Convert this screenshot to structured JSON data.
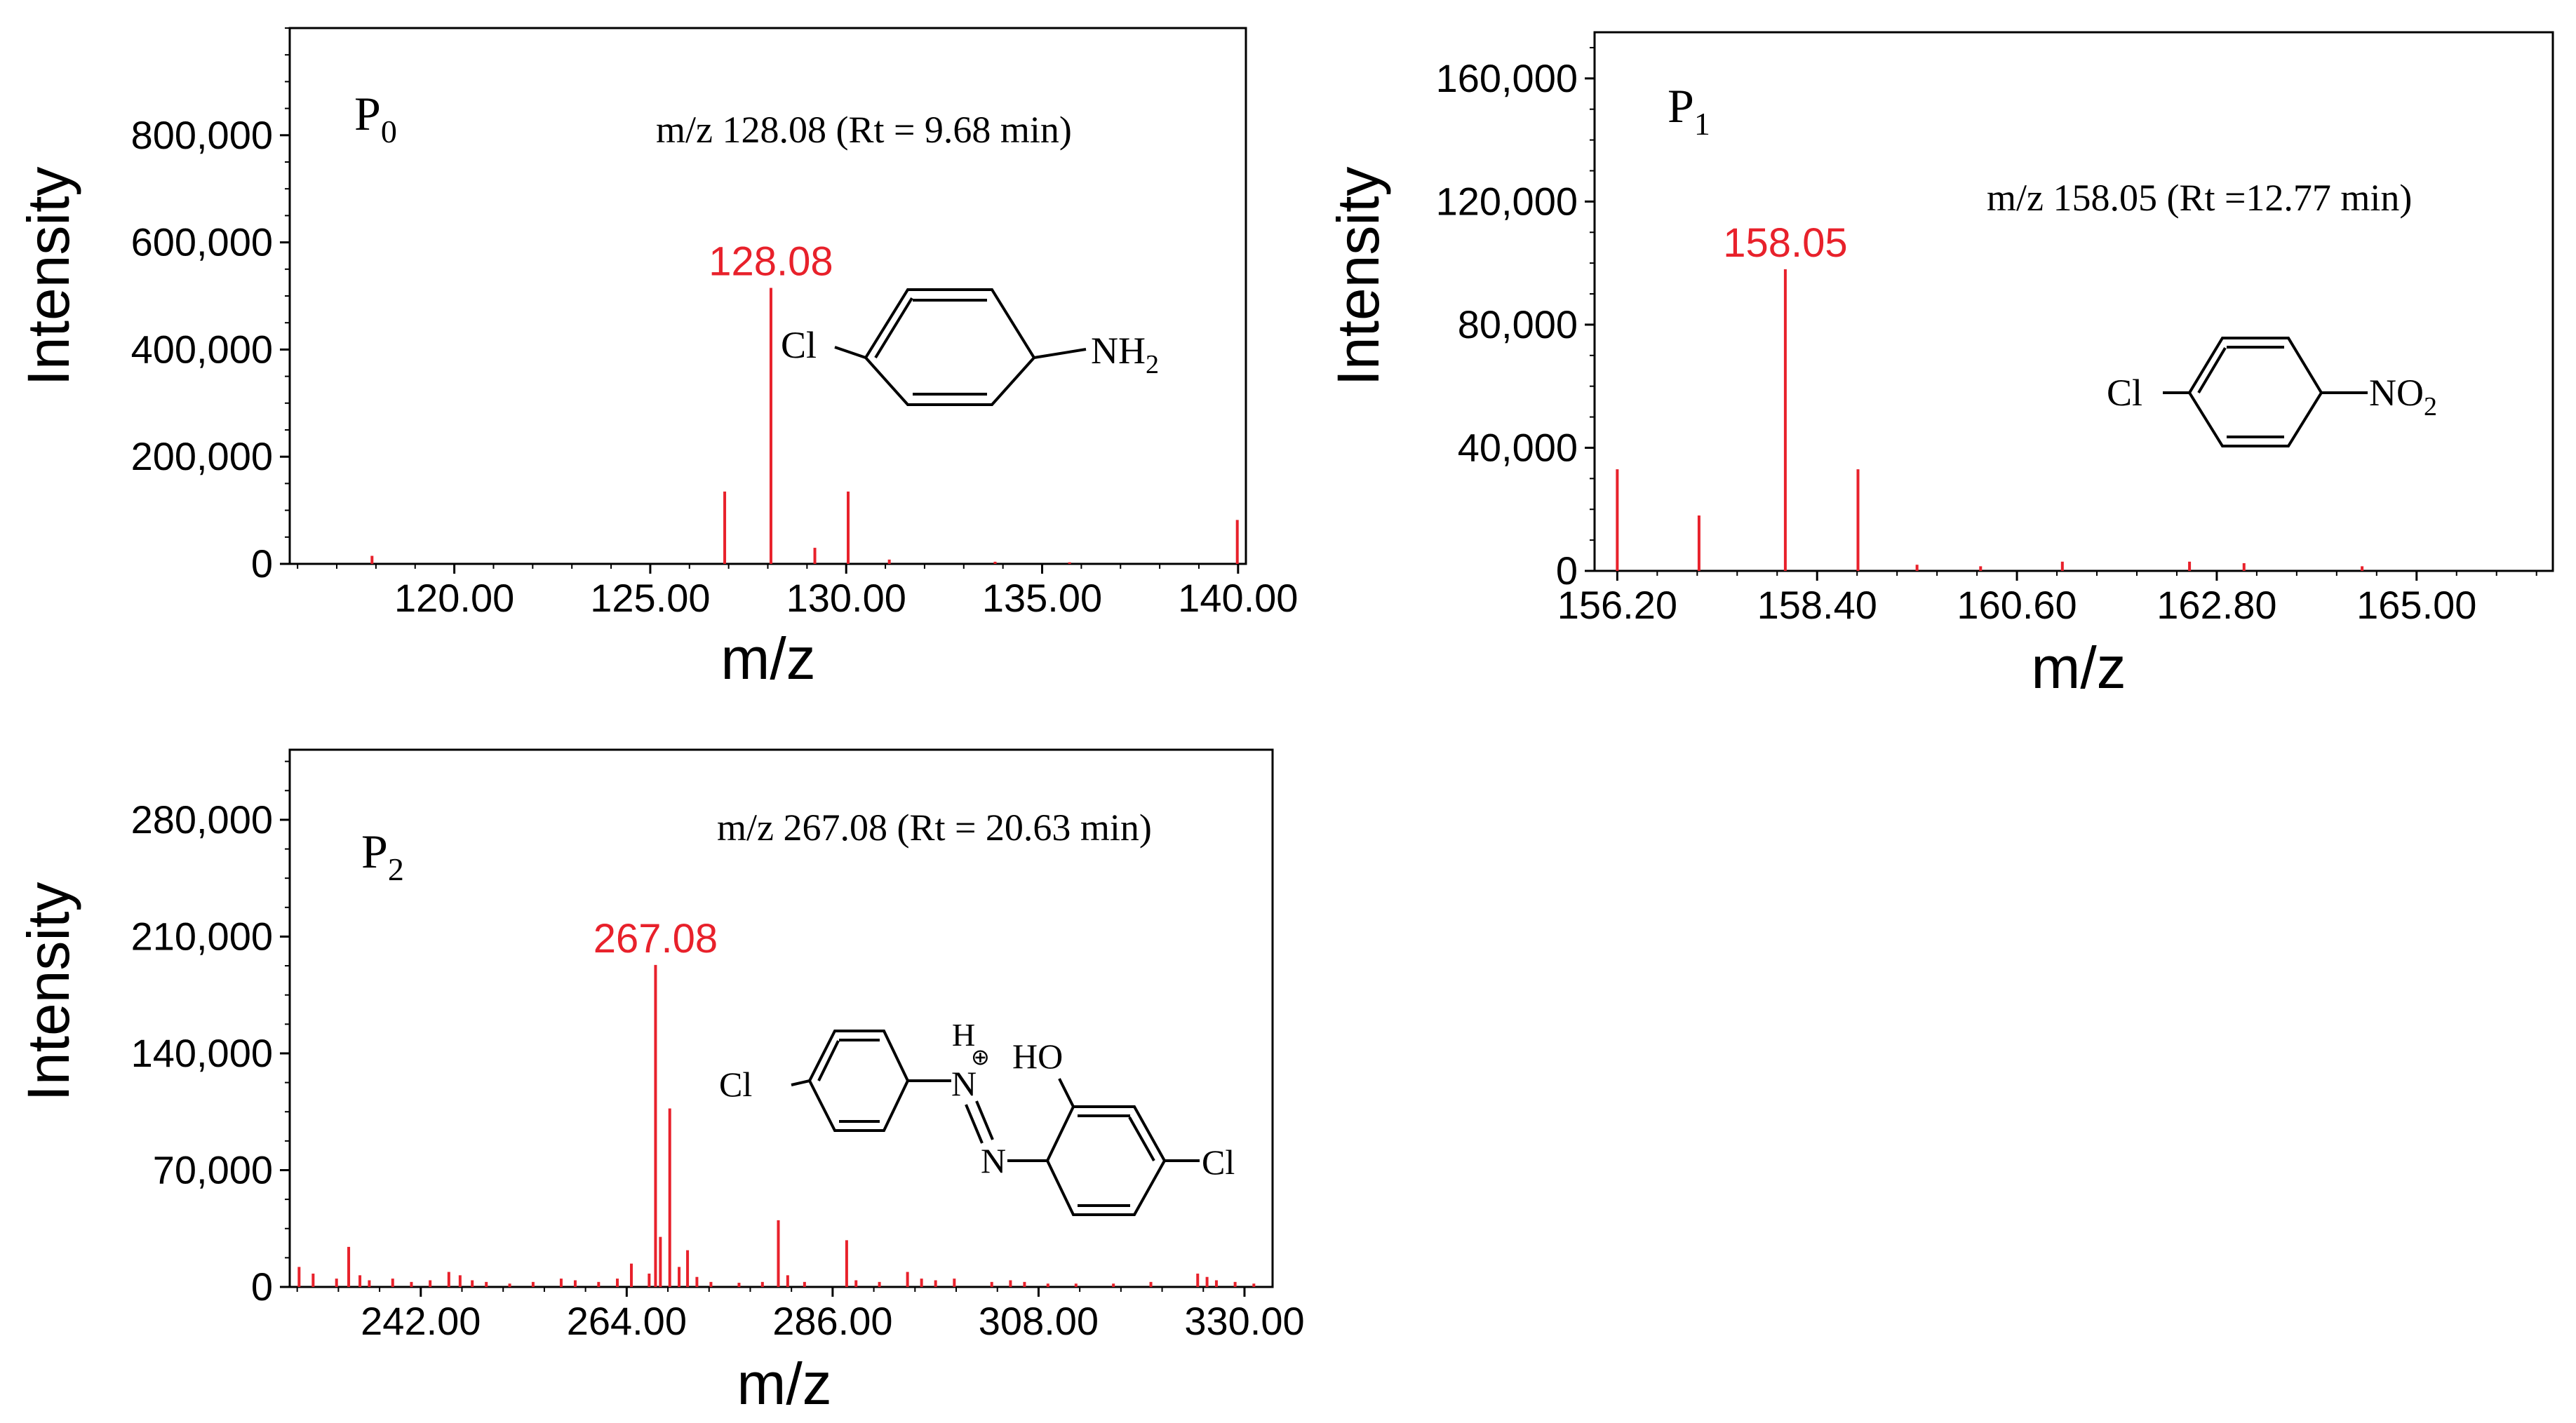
{
  "chart_data": [
    {
      "type": "bar",
      "panel_label": "P",
      "panel_sub": "0",
      "annotation": "m/z 128.08  (Rt = 9.68 min)",
      "xlabel": "m/z",
      "ylabel": "Intensity",
      "xlim": [
        115.8,
        140.2
      ],
      "ylim": [
        0,
        1000000
      ],
      "xticks": [
        120.0,
        125.0,
        130.0,
        135.0,
        140.0
      ],
      "xtick_labels": [
        "120.00",
        "125.00",
        "130.00",
        "135.00",
        "140.00"
      ],
      "yticks": [
        0,
        200000,
        400000,
        600000,
        800000
      ],
      "ytick_labels": [
        "0",
        "200,000",
        "400,000",
        "600,000",
        "800,000"
      ],
      "peaks": [
        {
          "x": 117.9,
          "y": 15000
        },
        {
          "x": 126.9,
          "y": 135000
        },
        {
          "x": 128.08,
          "y": 515000
        },
        {
          "x": 129.2,
          "y": 30000
        },
        {
          "x": 130.05,
          "y": 135000
        },
        {
          "x": 131.1,
          "y": 8000
        },
        {
          "x": 133.8,
          "y": 4000
        },
        {
          "x": 135.7,
          "y": 3000
        },
        {
          "x": 139.98,
          "y": 82000
        }
      ],
      "labeled_peak": {
        "x": 128.08,
        "y": 515000,
        "text": "128.08"
      },
      "structure": {
        "left": "Cl",
        "right": "NH",
        "right_sub": "2"
      }
    },
    {
      "type": "bar",
      "panel_label": "P",
      "panel_sub": "1",
      "annotation": "m/z 158.05  (Rt =12.77 min)",
      "xlabel": "m/z",
      "ylabel": "Intensity",
      "xlim": [
        155.95,
        166.5
      ],
      "ylim": [
        0,
        175000
      ],
      "xticks": [
        156.2,
        158.4,
        160.6,
        162.8,
        165.0
      ],
      "xtick_labels": [
        "156.20",
        "158.40",
        "160.60",
        "162.80",
        "165.00"
      ],
      "yticks": [
        0,
        40000,
        80000,
        120000,
        160000
      ],
      "ytick_labels": [
        "0",
        "40,000",
        "80,000",
        "120,000",
        "160,000"
      ],
      "peaks": [
        {
          "x": 156.2,
          "y": 33000
        },
        {
          "x": 157.1,
          "y": 18000
        },
        {
          "x": 158.05,
          "y": 98000
        },
        {
          "x": 158.85,
          "y": 33000
        },
        {
          "x": 159.5,
          "y": 2000
        },
        {
          "x": 160.2,
          "y": 1500
        },
        {
          "x": 161.1,
          "y": 3000
        },
        {
          "x": 162.5,
          "y": 3000
        },
        {
          "x": 163.1,
          "y": 2500
        },
        {
          "x": 164.4,
          "y": 1500
        }
      ],
      "labeled_peak": {
        "x": 158.05,
        "y": 98000,
        "text": "158.05"
      },
      "structure": {
        "left": "Cl",
        "right": "NO",
        "right_sub": "2"
      }
    },
    {
      "type": "bar",
      "panel_label": "P",
      "panel_sub": "2",
      "annotation": "m/z 267.08  (Rt = 20.63 min)",
      "xlabel": "m/z",
      "ylabel": "Intensity",
      "xlim": [
        228.0,
        333.0
      ],
      "ylim": [
        0,
        322000
      ],
      "xticks": [
        242.0,
        264.0,
        286.0,
        308.0,
        330.0
      ],
      "xtick_labels": [
        "242.00",
        "264.00",
        "286.00",
        "308.00",
        "330.00"
      ],
      "yticks": [
        0,
        70000,
        140000,
        210000,
        280000
      ],
      "ytick_labels": [
        "0",
        "70,000",
        "140,000",
        "210,000",
        "280,000"
      ],
      "peaks": [
        {
          "x": 229.0,
          "y": 12000
        },
        {
          "x": 230.5,
          "y": 8000
        },
        {
          "x": 233.0,
          "y": 5000
        },
        {
          "x": 234.3,
          "y": 24000
        },
        {
          "x": 235.5,
          "y": 7000
        },
        {
          "x": 236.5,
          "y": 4000
        },
        {
          "x": 239.0,
          "y": 5000
        },
        {
          "x": 241.0,
          "y": 3000
        },
        {
          "x": 243.0,
          "y": 4000
        },
        {
          "x": 245.0,
          "y": 9000
        },
        {
          "x": 246.2,
          "y": 7000
        },
        {
          "x": 247.5,
          "y": 4000
        },
        {
          "x": 249.0,
          "y": 3000
        },
        {
          "x": 251.5,
          "y": 2000
        },
        {
          "x": 254.0,
          "y": 3000
        },
        {
          "x": 257.0,
          "y": 5000
        },
        {
          "x": 258.5,
          "y": 4000
        },
        {
          "x": 261.0,
          "y": 3000
        },
        {
          "x": 263.0,
          "y": 5000
        },
        {
          "x": 264.5,
          "y": 14000
        },
        {
          "x": 266.4,
          "y": 8000
        },
        {
          "x": 267.08,
          "y": 193000
        },
        {
          "x": 267.6,
          "y": 30000
        },
        {
          "x": 268.6,
          "y": 107000
        },
        {
          "x": 269.6,
          "y": 12000
        },
        {
          "x": 270.5,
          "y": 22000
        },
        {
          "x": 271.5,
          "y": 6000
        },
        {
          "x": 273.0,
          "y": 3000
        },
        {
          "x": 276.0,
          "y": 2500
        },
        {
          "x": 278.5,
          "y": 3000
        },
        {
          "x": 280.2,
          "y": 40000
        },
        {
          "x": 281.2,
          "y": 7000
        },
        {
          "x": 283.0,
          "y": 3000
        },
        {
          "x": 287.5,
          "y": 28000
        },
        {
          "x": 288.5,
          "y": 4000
        },
        {
          "x": 291.0,
          "y": 3000
        },
        {
          "x": 294.0,
          "y": 9000
        },
        {
          "x": 295.5,
          "y": 5000
        },
        {
          "x": 297.0,
          "y": 4000
        },
        {
          "x": 299.0,
          "y": 5000
        },
        {
          "x": 303.0,
          "y": 3000
        },
        {
          "x": 305.0,
          "y": 4000
        },
        {
          "x": 306.5,
          "y": 3000
        },
        {
          "x": 309.0,
          "y": 2000
        },
        {
          "x": 312.0,
          "y": 2000
        },
        {
          "x": 316.0,
          "y": 2000
        },
        {
          "x": 320.0,
          "y": 3000
        },
        {
          "x": 325.0,
          "y": 8000
        },
        {
          "x": 326.0,
          "y": 6000
        },
        {
          "x": 327.0,
          "y": 4000
        },
        {
          "x": 329.0,
          "y": 3000
        },
        {
          "x": 331.0,
          "y": 2000
        }
      ],
      "labeled_peak": {
        "x": 267.08,
        "y": 193000,
        "text": "267.08"
      },
      "structure": {
        "left": "Cl",
        "right": "Cl",
        "h_label": "H",
        "charge": "⊕",
        "n1": "N",
        "n2": "N",
        "oh": "HO"
      }
    }
  ],
  "colors": {
    "peak": "#e8212b",
    "axis": "#000000"
  }
}
